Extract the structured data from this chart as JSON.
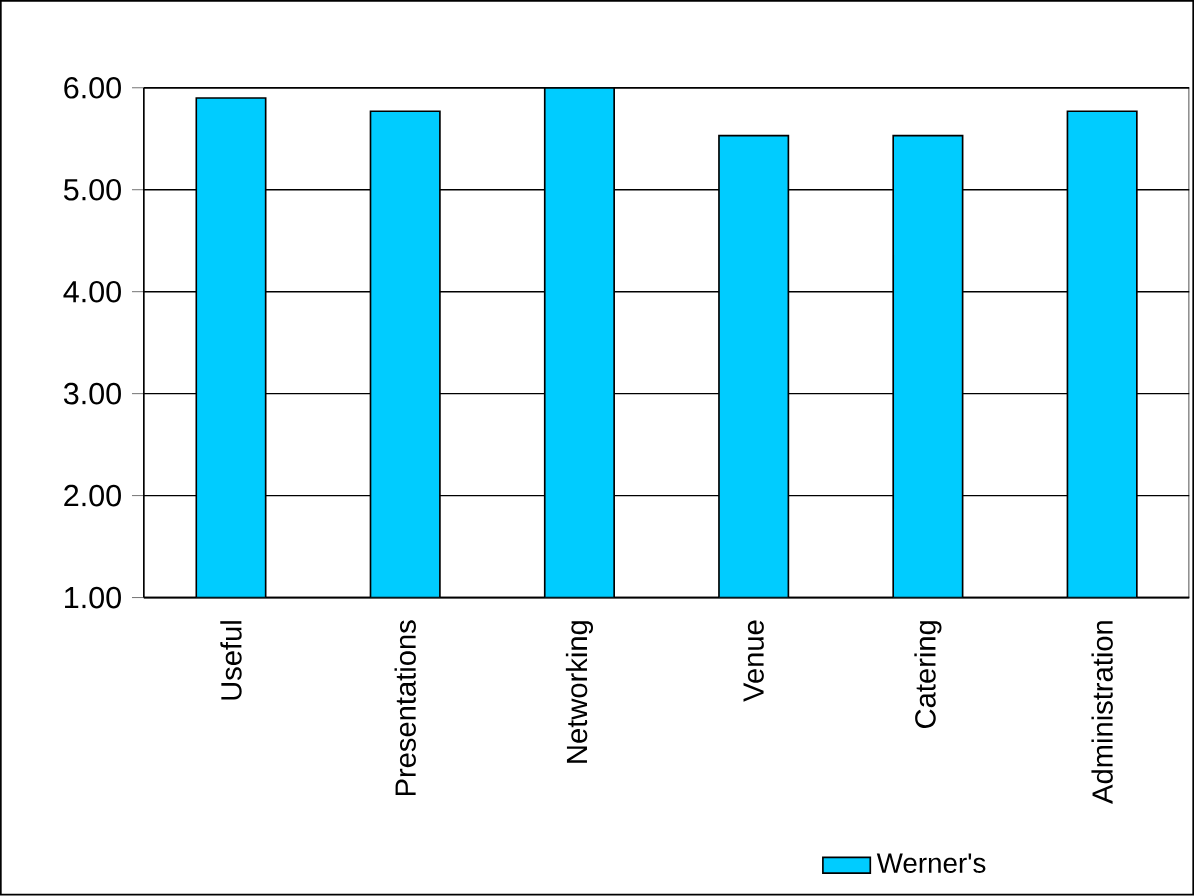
{
  "chart_data": {
    "type": "bar",
    "categories": [
      "Useful",
      "Presentations",
      "Networking",
      "Venue",
      "Catering",
      "Administration"
    ],
    "series": [
      {
        "name": "Werner's",
        "color": "#00ccff",
        "values": [
          5.9,
          5.77,
          6.0,
          5.53,
          5.53,
          5.77
        ]
      }
    ],
    "ylim": [
      1,
      6
    ],
    "yticks": [
      {
        "value": 1,
        "label": "1.00"
      },
      {
        "value": 2,
        "label": "2.00"
      },
      {
        "value": 3,
        "label": "3.00"
      },
      {
        "value": 4,
        "label": "4.00"
      },
      {
        "value": 5,
        "label": "5.00"
      },
      {
        "value": 6,
        "label": "6.00"
      }
    ],
    "grid": "y",
    "legend": "bottom"
  }
}
